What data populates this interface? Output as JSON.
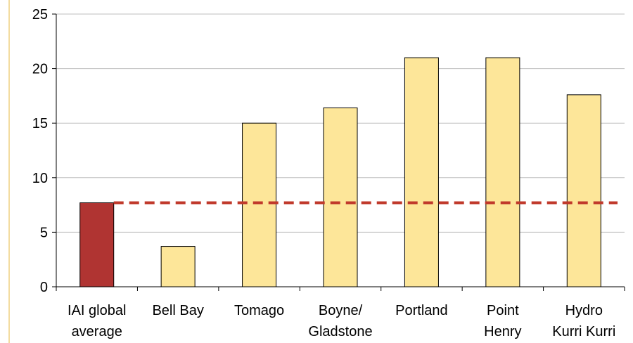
{
  "chart_data": {
    "type": "bar",
    "categories": [
      [
        "IAI global",
        "average"
      ],
      [
        "Bell Bay"
      ],
      [
        "Tomago"
      ],
      [
        "Boyne/",
        "Gladstone"
      ],
      [
        "Portland"
      ],
      [
        "Point",
        "Henry"
      ],
      [
        "Hydro",
        "Kurri Kurri"
      ]
    ],
    "values": [
      7.7,
      3.7,
      15.0,
      16.4,
      21.0,
      21.0,
      17.6
    ],
    "ylim": [
      0,
      25
    ],
    "yticks": [
      "0",
      "5",
      "10",
      "15",
      "20",
      "25"
    ],
    "reference_line": {
      "value": 7.7,
      "style": "dashed",
      "color": "#c0392b"
    },
    "colors": {
      "highlight_bar": "#b03432",
      "bar": "#fde699",
      "bar_stroke": "#000000",
      "grid": "#bfbfbf",
      "reference": "#c0392b"
    },
    "grid": true,
    "legend": "none"
  }
}
